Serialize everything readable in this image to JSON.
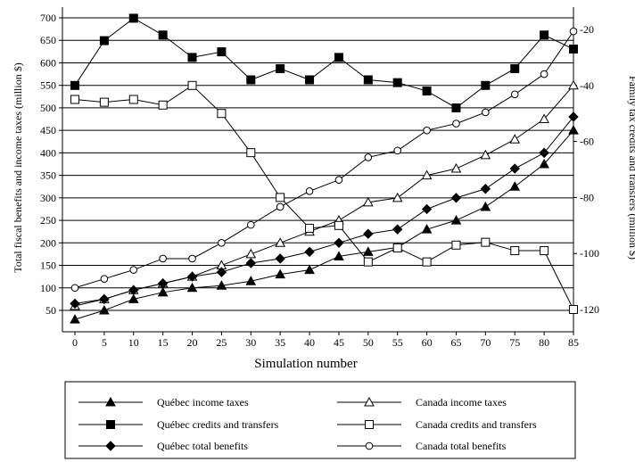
{
  "chart_data": {
    "type": "line",
    "xlabel": "Simulation number",
    "ylabel_left": "Total fiscal benefits and income taxes (million $)",
    "ylabel_right": "Family tax credits and transfers (million $)",
    "x": [
      0,
      5,
      10,
      15,
      20,
      25,
      30,
      35,
      40,
      45,
      50,
      55,
      60,
      65,
      70,
      75,
      80,
      85
    ],
    "x_tick_labels": [
      "0",
      "5",
      "10",
      "15",
      "20",
      "25",
      "30",
      "35",
      "40",
      "45",
      "50",
      "55",
      "60",
      "65",
      "70",
      "75",
      "80",
      "85"
    ],
    "ylim_left": [
      30,
      700
    ],
    "yticks_left": [
      "50",
      "100",
      "150",
      "200",
      "250",
      "300",
      "350",
      "400",
      "450",
      "500",
      "550",
      "600",
      "650",
      "700"
    ],
    "ylim_right": [
      -124,
      -14
    ],
    "yticks_right": [
      "-20",
      "-40",
      "-60",
      "-80",
      "-100",
      "-120"
    ],
    "grid": "horizontal",
    "series": [
      {
        "name": "Québec income taxes",
        "axis": "left",
        "marker": "filled-triangle",
        "values": [
          30,
          50,
          75,
          90,
          100,
          105,
          115,
          130,
          140,
          170,
          180,
          190,
          230,
          250,
          280,
          325,
          375,
          450
        ]
      },
      {
        "name": "Canada income taxes",
        "axis": "left",
        "marker": "open-triangle",
        "values": [
          60,
          75,
          95,
          110,
          125,
          150,
          175,
          200,
          225,
          250,
          290,
          300,
          350,
          365,
          395,
          430,
          475,
          550
        ]
      },
      {
        "name": "Québec credits and transfers",
        "axis": "right",
        "marker": "filled-square",
        "values": [
          -40,
          -24,
          -16,
          -22,
          -30,
          -28,
          -38,
          -34,
          -38,
          -30,
          -38,
          -39,
          -42,
          -48,
          -40,
          -34,
          -22,
          -27
        ]
      },
      {
        "name": "Canada credits and transfers",
        "axis": "right",
        "marker": "open-square",
        "values": [
          -45,
          -46,
          -45,
          -47,
          -40,
          -50,
          -64,
          -80,
          -91,
          -90,
          -103,
          -98,
          -103,
          -97,
          -96,
          -99,
          -99,
          -120
        ]
      },
      {
        "name": "Québec total benefits",
        "axis": "left",
        "marker": "filled-diamond",
        "values": [
          65,
          75,
          95,
          110,
          125,
          135,
          155,
          165,
          180,
          200,
          220,
          230,
          275,
          300,
          320,
          365,
          400,
          480
        ]
      },
      {
        "name": "Canada total benefits",
        "axis": "left",
        "marker": "open-circle",
        "values": [
          100,
          120,
          140,
          165,
          165,
          200,
          240,
          280,
          315,
          340,
          390,
          405,
          450,
          465,
          490,
          530,
          575,
          670
        ]
      }
    ]
  }
}
